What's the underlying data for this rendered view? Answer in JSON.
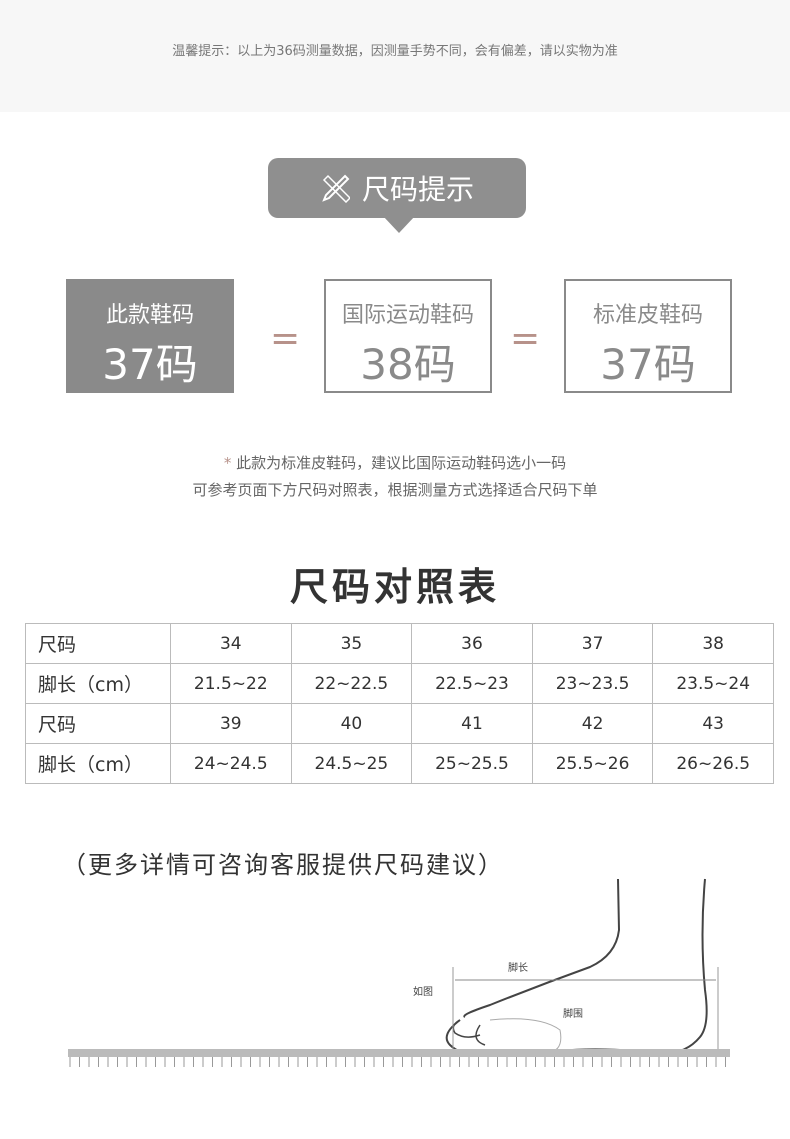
{
  "notice": "温馨提示：以上为36码测量数据，因测量手势不同，会有偏差，请以实物为准",
  "banner": {
    "icon": "ruler-pencil-icon",
    "label": "尺码提示"
  },
  "sizes": [
    {
      "label": "此款鞋码",
      "value": "37码"
    },
    {
      "label": "国际运动鞋码",
      "value": "38码"
    },
    {
      "label": "标准皮鞋码",
      "value": "37码"
    }
  ],
  "equals": "=",
  "notes": {
    "asterisk": "*",
    "line1": "此款为标准皮鞋码，建议比国际运动鞋码选小一码",
    "line2": "可参考页面下方尺码对照表，根据测量方式选择适合尺码下单"
  },
  "chart_title": "尺码对照表",
  "table": {
    "rows": [
      [
        "尺码",
        "34",
        "35",
        "36",
        "37",
        "38"
      ],
      [
        "脚长（cm）",
        "21.5~22",
        "22~22.5",
        "22.5~23",
        "23~23.5",
        "23.5~24"
      ],
      [
        "尺码",
        "39",
        "40",
        "41",
        "42",
        "43"
      ],
      [
        "脚长（cm）",
        "24~24.5",
        "24.5~25",
        "25~25.5",
        "25.5~26",
        "26~26.5"
      ]
    ]
  },
  "footer": "（更多详情可咨询客服提供尺码建议）",
  "diagram": {
    "length_label": "脚长",
    "as_shown": "如图",
    "girth_label": "脚围"
  },
  "colors": {
    "banner": "#8f8f8f",
    "accent": "#b7928a",
    "band": "#f7f7f7"
  }
}
